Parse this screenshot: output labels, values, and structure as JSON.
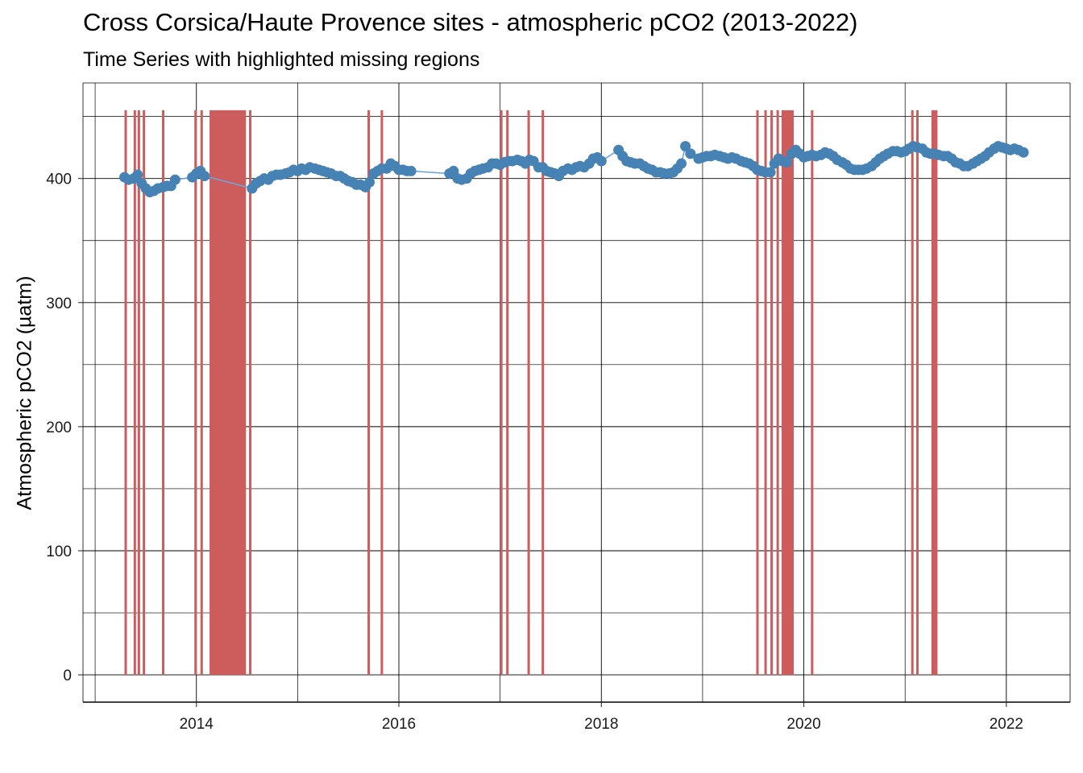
{
  "chart_data": {
    "type": "line",
    "title": "Cross Corsica/Haute Provence sites - atmospheric pCO2 (2013-2022)",
    "subtitle": "Time Series with highlighted missing regions",
    "xlabel": "",
    "ylabel": "Atmospheric pCO2 (µatm)",
    "xlim": [
      2012.88,
      2022.63
    ],
    "ylim": [
      -22,
      477
    ],
    "x_ticks": [
      2014,
      2016,
      2018,
      2020,
      2022
    ],
    "x_tick_labels": [
      "2014",
      "2016",
      "2018",
      "2020",
      "2022"
    ],
    "y_ticks": [
      0,
      100,
      200,
      300,
      400
    ],
    "y_tick_labels": [
      "0",
      "100",
      "200",
      "300",
      "400"
    ],
    "grid": true,
    "legend": "none",
    "colors": {
      "series": "#4682B4",
      "line": "#6CA6D9",
      "missing": "#CD5C5C"
    },
    "series": [
      {
        "points": [
          [
            2013.29,
            401
          ],
          [
            2013.33,
            399
          ],
          [
            2013.38,
            400
          ],
          [
            2013.42,
            403
          ],
          [
            2013.46,
            396
          ],
          [
            2013.5,
            392
          ],
          [
            2013.54,
            389
          ],
          [
            2013.58,
            390
          ],
          [
            2013.62,
            392
          ],
          [
            2013.67,
            393
          ],
          [
            2013.71,
            394
          ],
          [
            2013.75,
            394
          ],
          [
            2013.79,
            399
          ],
          [
            2013.96,
            401
          ],
          [
            2014.0,
            404
          ],
          [
            2014.04,
            406
          ],
          [
            2014.08,
            402
          ],
          [
            2014.55,
            392
          ],
          [
            2014.59,
            396
          ],
          [
            2014.63,
            398
          ],
          [
            2014.67,
            400
          ],
          [
            2014.71,
            399
          ],
          [
            2014.75,
            402
          ],
          [
            2014.79,
            403
          ],
          [
            2014.83,
            403
          ],
          [
            2014.88,
            404
          ],
          [
            2014.92,
            405
          ],
          [
            2014.96,
            407
          ],
          [
            2015.0,
            406
          ],
          [
            2015.04,
            408
          ],
          [
            2015.08,
            407
          ],
          [
            2015.12,
            409
          ],
          [
            2015.17,
            408
          ],
          [
            2015.21,
            407
          ],
          [
            2015.25,
            406
          ],
          [
            2015.29,
            405
          ],
          [
            2015.33,
            404
          ],
          [
            2015.38,
            402
          ],
          [
            2015.42,
            402
          ],
          [
            2015.46,
            400
          ],
          [
            2015.5,
            398
          ],
          [
            2015.54,
            397
          ],
          [
            2015.58,
            395
          ],
          [
            2015.62,
            395
          ],
          [
            2015.67,
            393
          ],
          [
            2015.71,
            397
          ],
          [
            2015.75,
            404
          ],
          [
            2015.79,
            406
          ],
          [
            2015.83,
            408
          ],
          [
            2015.88,
            408
          ],
          [
            2015.92,
            412
          ],
          [
            2015.96,
            410
          ],
          [
            2016.0,
            407
          ],
          [
            2016.04,
            407
          ],
          [
            2016.08,
            406
          ],
          [
            2016.12,
            406
          ],
          [
            2016.5,
            404
          ],
          [
            2016.54,
            406
          ],
          [
            2016.58,
            400
          ],
          [
            2016.62,
            399
          ],
          [
            2016.67,
            400
          ],
          [
            2016.71,
            404
          ],
          [
            2016.75,
            406
          ],
          [
            2016.79,
            407
          ],
          [
            2016.83,
            408
          ],
          [
            2016.88,
            409
          ],
          [
            2016.92,
            412
          ],
          [
            2016.96,
            412
          ],
          [
            2017.0,
            411
          ],
          [
            2017.04,
            413
          ],
          [
            2017.08,
            414
          ],
          [
            2017.12,
            414
          ],
          [
            2017.17,
            415
          ],
          [
            2017.21,
            414
          ],
          [
            2017.25,
            412
          ],
          [
            2017.29,
            415
          ],
          [
            2017.33,
            414
          ],
          [
            2017.38,
            409
          ],
          [
            2017.42,
            409
          ],
          [
            2017.46,
            406
          ],
          [
            2017.5,
            405
          ],
          [
            2017.54,
            404
          ],
          [
            2017.58,
            402
          ],
          [
            2017.62,
            406
          ],
          [
            2017.67,
            408
          ],
          [
            2017.71,
            407
          ],
          [
            2017.75,
            409
          ],
          [
            2017.79,
            410
          ],
          [
            2017.83,
            409
          ],
          [
            2017.88,
            412
          ],
          [
            2017.92,
            416
          ],
          [
            2017.96,
            417
          ],
          [
            2018.0,
            414
          ],
          [
            2018.17,
            423
          ],
          [
            2018.21,
            418
          ],
          [
            2018.25,
            414
          ],
          [
            2018.29,
            413
          ],
          [
            2018.33,
            412
          ],
          [
            2018.38,
            412
          ],
          [
            2018.42,
            410
          ],
          [
            2018.46,
            408
          ],
          [
            2018.5,
            407
          ],
          [
            2018.54,
            405
          ],
          [
            2018.58,
            405
          ],
          [
            2018.62,
            404
          ],
          [
            2018.67,
            404
          ],
          [
            2018.71,
            405
          ],
          [
            2018.75,
            408
          ],
          [
            2018.79,
            412
          ],
          [
            2018.83,
            426
          ],
          [
            2018.88,
            420
          ],
          [
            2018.96,
            416
          ],
          [
            2019.0,
            417
          ],
          [
            2019.04,
            418
          ],
          [
            2019.08,
            418
          ],
          [
            2019.12,
            419
          ],
          [
            2019.17,
            418
          ],
          [
            2019.21,
            417
          ],
          [
            2019.25,
            416
          ],
          [
            2019.29,
            417
          ],
          [
            2019.33,
            416
          ],
          [
            2019.38,
            414
          ],
          [
            2019.42,
            413
          ],
          [
            2019.46,
            412
          ],
          [
            2019.5,
            410
          ],
          [
            2019.54,
            407
          ],
          [
            2019.58,
            406
          ],
          [
            2019.62,
            405
          ],
          [
            2019.67,
            405
          ],
          [
            2019.71,
            412
          ],
          [
            2019.75,
            416
          ],
          [
            2019.79,
            414
          ],
          [
            2019.83,
            413
          ],
          [
            2019.88,
            420
          ],
          [
            2019.92,
            423
          ],
          [
            2019.96,
            420
          ],
          [
            2020.0,
            417
          ],
          [
            2020.04,
            418
          ],
          [
            2020.08,
            419
          ],
          [
            2020.12,
            418
          ],
          [
            2020.17,
            419
          ],
          [
            2020.21,
            421
          ],
          [
            2020.25,
            420
          ],
          [
            2020.29,
            418
          ],
          [
            2020.33,
            415
          ],
          [
            2020.38,
            413
          ],
          [
            2020.42,
            411
          ],
          [
            2020.46,
            408
          ],
          [
            2020.5,
            407
          ],
          [
            2020.54,
            407
          ],
          [
            2020.58,
            407
          ],
          [
            2020.62,
            408
          ],
          [
            2020.67,
            410
          ],
          [
            2020.71,
            413
          ],
          [
            2020.75,
            416
          ],
          [
            2020.79,
            418
          ],
          [
            2020.83,
            420
          ],
          [
            2020.88,
            422
          ],
          [
            2020.92,
            422
          ],
          [
            2020.96,
            421
          ],
          [
            2021.0,
            422
          ],
          [
            2021.04,
            424
          ],
          [
            2021.08,
            426
          ],
          [
            2021.12,
            425
          ],
          [
            2021.17,
            424
          ],
          [
            2021.21,
            421
          ],
          [
            2021.25,
            420
          ],
          [
            2021.29,
            420
          ],
          [
            2021.33,
            419
          ],
          [
            2021.38,
            418
          ],
          [
            2021.42,
            418
          ],
          [
            2021.46,
            416
          ],
          [
            2021.5,
            413
          ],
          [
            2021.54,
            412
          ],
          [
            2021.58,
            410
          ],
          [
            2021.62,
            410
          ],
          [
            2021.67,
            412
          ],
          [
            2021.71,
            414
          ],
          [
            2021.75,
            416
          ],
          [
            2021.79,
            418
          ],
          [
            2021.83,
            421
          ],
          [
            2021.88,
            424
          ],
          [
            2021.92,
            426
          ],
          [
            2021.96,
            425
          ],
          [
            2022.0,
            424
          ],
          [
            2022.04,
            423
          ],
          [
            2022.08,
            424
          ],
          [
            2022.12,
            423
          ],
          [
            2022.17,
            421
          ]
        ]
      }
    ],
    "missing_regions": [
      [
        2013.29,
        2013.31
      ],
      [
        2013.38,
        2013.39
      ],
      [
        2013.42,
        2013.43
      ],
      [
        2013.47,
        2013.48
      ],
      [
        2013.66,
        2013.67
      ],
      [
        2013.98,
        2013.99
      ],
      [
        2014.04,
        2014.05
      ],
      [
        2014.13,
        2014.49
      ],
      [
        2014.52,
        2014.53
      ],
      [
        2015.69,
        2015.7
      ],
      [
        2015.82,
        2015.83
      ],
      [
        2017.0,
        2017.01
      ],
      [
        2017.06,
        2017.07
      ],
      [
        2017.27,
        2017.28
      ],
      [
        2017.41,
        2017.42
      ],
      [
        2019.53,
        2019.54
      ],
      [
        2019.61,
        2019.62
      ],
      [
        2019.67,
        2019.68
      ],
      [
        2019.73,
        2019.74
      ],
      [
        2019.78,
        2019.9
      ],
      [
        2020.07,
        2020.08
      ],
      [
        2021.06,
        2021.07
      ],
      [
        2021.11,
        2021.12
      ],
      [
        2021.26,
        2021.32
      ]
    ],
    "missing_top": 455
  }
}
